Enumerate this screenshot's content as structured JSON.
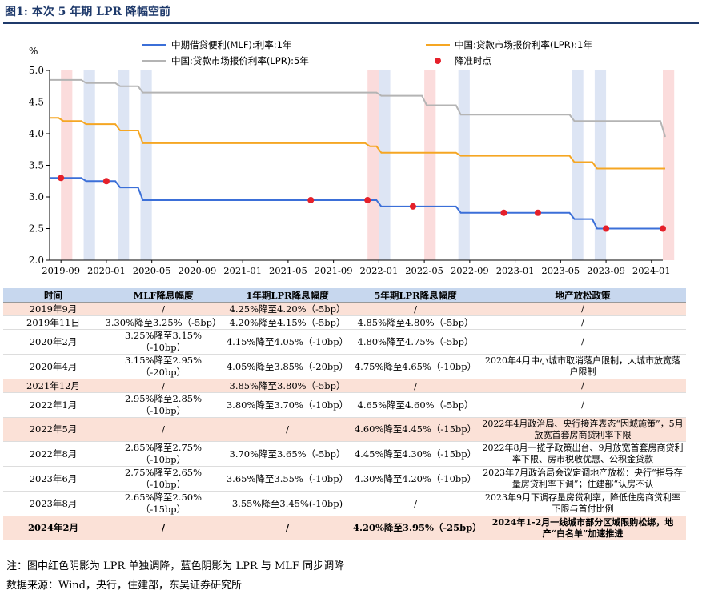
{
  "title": "图1: 本次 5 年期 LPR 降幅空前",
  "chart_data": {
    "type": "line",
    "y_unit": "%",
    "ylim": [
      2.0,
      5.0
    ],
    "y_ticks": [
      "5.0",
      "4.5",
      "4.0",
      "3.5",
      "3.0",
      "2.5",
      "2.0"
    ],
    "x_tick_labels": [
      "2019-09",
      "2020-01",
      "2020-05",
      "2020-09",
      "2021-01",
      "2021-05",
      "2021-09",
      "2022-01",
      "2022-05",
      "2022-09",
      "2023-01",
      "2023-05",
      "2023-09",
      "2024-01"
    ],
    "xlim": [
      "2019-08",
      "2024-02"
    ],
    "series": [
      {
        "name": "中期借贷便利(MLF):利率:1年",
        "color": "#3b6fd8",
        "points": [
          [
            "2019-08",
            3.3
          ],
          [
            "2019-11",
            3.25
          ],
          [
            "2020-02",
            3.15
          ],
          [
            "2020-04",
            2.95
          ],
          [
            "2022-01",
            2.85
          ],
          [
            "2022-08",
            2.75
          ],
          [
            "2023-06",
            2.65
          ],
          [
            "2023-08",
            2.5
          ],
          [
            "2024-02",
            2.5
          ]
        ]
      },
      {
        "name": "中国:贷款市场报价利率(LPR):1年",
        "color": "#f5a623",
        "points": [
          [
            "2019-08",
            4.25
          ],
          [
            "2019-09",
            4.2
          ],
          [
            "2019-11",
            4.15
          ],
          [
            "2020-02",
            4.05
          ],
          [
            "2020-04",
            3.85
          ],
          [
            "2021-12",
            3.8
          ],
          [
            "2022-01",
            3.7
          ],
          [
            "2022-08",
            3.65
          ],
          [
            "2023-06",
            3.55
          ],
          [
            "2023-08",
            3.45
          ],
          [
            "2024-02",
            3.45
          ]
        ]
      },
      {
        "name": "中国:贷款市场报价利率(LPR):5年",
        "color": "#b4b4b4",
        "points": [
          [
            "2019-08",
            4.85
          ],
          [
            "2019-11",
            4.8
          ],
          [
            "2020-02",
            4.75
          ],
          [
            "2020-04",
            4.65
          ],
          [
            "2022-01",
            4.6
          ],
          [
            "2022-05",
            4.45
          ],
          [
            "2022-08",
            4.3
          ],
          [
            "2023-06",
            4.2
          ],
          [
            "2024-01",
            4.2
          ],
          [
            "2024-02",
            3.95
          ]
        ]
      }
    ],
    "cut_points_name": "降准时点",
    "cut_points_color": "#e5202a",
    "cut_points": [
      [
        "2019-09",
        3.3
      ],
      [
        "2020-01",
        3.25
      ],
      [
        "2021-07",
        2.95
      ],
      [
        "2021-12",
        2.95
      ],
      [
        "2022-04",
        2.85
      ],
      [
        "2022-12",
        2.75
      ],
      [
        "2023-03",
        2.75
      ],
      [
        "2023-09",
        2.5
      ],
      [
        "2024-02",
        2.5
      ]
    ],
    "shading": [
      {
        "start": "2019-09",
        "end": "2019-10",
        "type": "red"
      },
      {
        "start": "2019-11",
        "end": "2019-12",
        "type": "blue"
      },
      {
        "start": "2020-02",
        "end": "2020-03",
        "type": "blue"
      },
      {
        "start": "2020-04",
        "end": "2020-05",
        "type": "blue"
      },
      {
        "start": "2021-12",
        "end": "2022-01",
        "type": "red"
      },
      {
        "start": "2022-01",
        "end": "2022-02",
        "type": "blue"
      },
      {
        "start": "2022-05",
        "end": "2022-06",
        "type": "red"
      },
      {
        "start": "2022-08",
        "end": "2022-09",
        "type": "blue"
      },
      {
        "start": "2023-06",
        "end": "2023-07",
        "type": "blue"
      },
      {
        "start": "2023-08",
        "end": "2023-09",
        "type": "blue"
      },
      {
        "start": "2024-02",
        "end": "2024-03",
        "type": "red"
      }
    ],
    "shade_colors": {
      "red": "#fbdcdc",
      "blue": "#dde5f4"
    }
  },
  "table": {
    "headers": [
      "时间",
      "MLF降息幅度",
      "1年期LPR降息幅度",
      "5年期LPR降息幅度",
      "地产放松政策"
    ],
    "rows": [
      {
        "cells": [
          "2019年9月",
          "/",
          "4.25%降至4.20%（-5bp）",
          "/",
          "/"
        ],
        "hl": true,
        "bold": false
      },
      {
        "cells": [
          "2019年11日",
          "3.30%降至3.25%（-5bp）",
          "4.20%降至4.15%（-5bp）",
          "4.85%降至4.80%（-5bp）",
          "/"
        ],
        "hl": false,
        "bold": false
      },
      {
        "cells": [
          "2020年2月",
          "3.25%降至3.15%（-10bp）",
          "4.15%降至4.05%（-10bp）",
          "4.80%降至4.75%（-5bp）",
          "/"
        ],
        "hl": false,
        "bold": false
      },
      {
        "cells": [
          "2020年4月",
          "3.15%降至2.95%（-20bp）",
          "4.05%降至3.85%（-20bp）",
          "4.75%降至4.65%（-10bp）",
          "2020年4月中小城市取消落户限制，大城市放宽落户限制"
        ],
        "hl": false,
        "bold": false
      },
      {
        "cells": [
          "2021年12月",
          "/",
          "3.85%降至3.80%（-5bp）",
          "/",
          "/"
        ],
        "hl": true,
        "bold": false
      },
      {
        "cells": [
          "2022年1月",
          "2.95%降至2.85%（-10bp）",
          "3.80%降至3.70%（-10bp）",
          "4.65%降至4.60%（-5bp）",
          "/"
        ],
        "hl": false,
        "bold": false
      },
      {
        "cells": [
          "2022年5月",
          "/",
          "/",
          "4.60%降至4.45%（-15bp）",
          "2022年4月政治局、央行接连表态“因城施策”，5月放宽首套房商贷利率下限"
        ],
        "hl": true,
        "bold": false
      },
      {
        "cells": [
          "2022年8月",
          "2.85%降至2.75%（-10bp）",
          "3.70%降至3.65%（-5bp）",
          "4.45%降至4.30%（-15bp）",
          "2022年8月一揽子政策出台、9月放宽首套房商贷利率下限、房市税收优惠、公积金贷款"
        ],
        "hl": false,
        "bold": false
      },
      {
        "cells": [
          "2023年6月",
          "2.75%降至2.65%（-10bp）",
          "3.65%降至3.55%（-10bp）",
          "4.30%降至4.20%（-10bp）",
          "2023年7月政治局会议定调地产放松：央行“指导存量房贷利率下调”；住建部“认房不认"
        ],
        "hl": false,
        "bold": false
      },
      {
        "cells": [
          "2023年8月",
          "2.65%降至2.50%（-15bp）",
          "3.55%降至3.45%(-10bp)",
          "/",
          "2023年9月下调存量房贷利率，降低住房商贷利率下限与首付比例"
        ],
        "hl": false,
        "bold": false
      },
      {
        "cells": [
          "2024年2月",
          "/",
          "/",
          "4.20%降至3.95%（-25bp）",
          "2024年1-2月一线城市部分区域限购松绑，地产“白名单”加速推进"
        ],
        "hl": true,
        "bold": true
      }
    ]
  },
  "notes": {
    "note": "注：图中红色阴影为 LPR 单独调降，蓝色阴影为 LPR 与 MLF 同步调降",
    "source": "数据来源：Wind，央行，住建部，东吴证券研究所"
  }
}
